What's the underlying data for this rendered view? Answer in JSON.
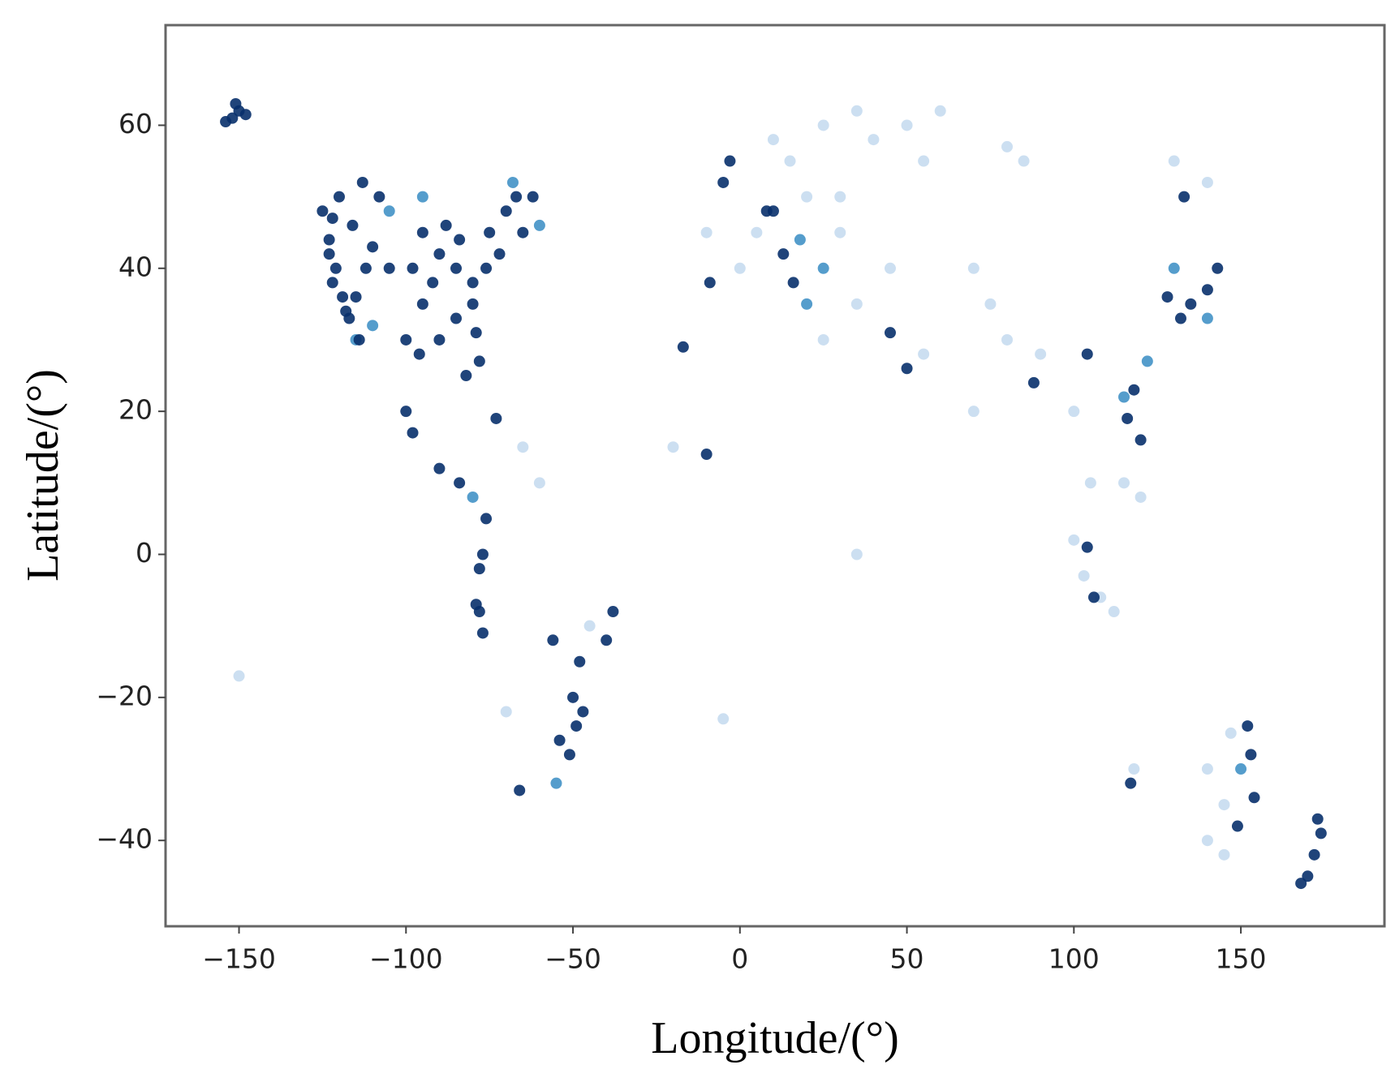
{
  "chart_data": {
    "type": "scatter",
    "x_label": "Longitude/(°)",
    "y_label": "Latitude/(°)",
    "xlim": [
      -172,
      193
    ],
    "ylim": [
      -52,
      74
    ],
    "xticks": [
      {
        "value": -150,
        "label": "−150"
      },
      {
        "value": -100,
        "label": "−100"
      },
      {
        "value": -50,
        "label": "−50"
      },
      0,
      50,
      100,
      150
    ],
    "yticks": [
      {
        "value": -40,
        "label": "−40"
      },
      {
        "value": -20,
        "label": "−20"
      },
      0,
      20,
      40,
      60
    ],
    "series": [
      {
        "color": "#c6dbef",
        "x": [
          15,
          25,
          35,
          40,
          50,
          55,
          60,
          80,
          85,
          30,
          20,
          10,
          5,
          0,
          -10,
          25,
          35,
          30,
          45,
          55,
          70,
          75,
          70,
          80,
          90,
          100,
          105,
          100,
          103,
          108,
          115,
          120,
          130,
          140,
          140,
          145,
          140,
          147,
          118,
          -150,
          -20,
          -60,
          -70,
          -5,
          35,
          -45,
          -65,
          112,
          145
        ],
        "y": [
          55,
          60,
          62,
          58,
          60,
          55,
          62,
          57,
          55,
          50,
          50,
          58,
          45,
          40,
          45,
          30,
          35,
          45,
          40,
          28,
          40,
          35,
          20,
          30,
          28,
          20,
          10,
          2,
          -3,
          -6,
          10,
          8,
          55,
          52,
          -30,
          -35,
          -40,
          -25,
          -30,
          -17,
          15,
          10,
          -22,
          -23,
          0,
          -10,
          15,
          -8,
          -42
        ]
      },
      {
        "color": "#4292c6",
        "x": [
          -115,
          -110,
          -95,
          -68,
          -60,
          20,
          25,
          18,
          -80,
          -55,
          130,
          140,
          115,
          122,
          150,
          -105
        ],
        "y": [
          30,
          32,
          50,
          52,
          46,
          35,
          40,
          44,
          8,
          -32,
          40,
          33,
          22,
          27,
          -30,
          48
        ]
      },
      {
        "color": "#08306b",
        "x": [
          -152,
          -150,
          -154,
          -148,
          -151,
          -125,
          -122,
          -123,
          -121,
          -122,
          -118,
          -117,
          -115,
          -112,
          -110,
          -105,
          -108,
          -113,
          -120,
          -123,
          -119,
          -114,
          -116,
          -95,
          -90,
          -85,
          -80,
          -95,
          -90,
          -85,
          -80,
          -78,
          -82,
          -100,
          -98,
          -88,
          -75,
          -72,
          -70,
          -65,
          -62,
          -92,
          -84,
          -96,
          -79,
          -76,
          -67,
          -100,
          -98,
          -90,
          -84,
          -73,
          -76,
          -77,
          -78,
          -78,
          -77,
          -79,
          -48,
          -50,
          -49,
          -51,
          -47,
          -54,
          -38,
          -40,
          -66,
          -56,
          -9,
          -17,
          -10,
          -5,
          10,
          13,
          16,
          8,
          -3,
          45,
          50,
          88,
          104,
          116,
          120,
          118,
          133,
          128,
          135,
          140,
          143,
          132,
          104,
          106,
          117,
          153,
          154,
          152,
          149,
          170,
          172,
          174,
          168,
          173
        ],
        "y": [
          61,
          62,
          60.5,
          61.5,
          63,
          48,
          47,
          44,
          40,
          38,
          34,
          33,
          36,
          40,
          43,
          40,
          50,
          52,
          50,
          42,
          36,
          30,
          46,
          45,
          42,
          40,
          38,
          35,
          30,
          33,
          35,
          27,
          25,
          30,
          40,
          46,
          45,
          42,
          48,
          45,
          50,
          38,
          44,
          28,
          31,
          40,
          50,
          20,
          17,
          12,
          10,
          19,
          5,
          0,
          -2,
          -8,
          -11,
          -7,
          -15,
          -20,
          -24,
          -28,
          -22,
          -26,
          -8,
          -12,
          -33,
          -12,
          38,
          29,
          14,
          52,
          48,
          42,
          38,
          48,
          55,
          31,
          26,
          24,
          28,
          19,
          16,
          23,
          50,
          36,
          35,
          37,
          40,
          33,
          1,
          -6,
          -32,
          -28,
          -34,
          -24,
          -38,
          -45,
          -42,
          -39,
          -46,
          -37
        ]
      }
    ]
  }
}
